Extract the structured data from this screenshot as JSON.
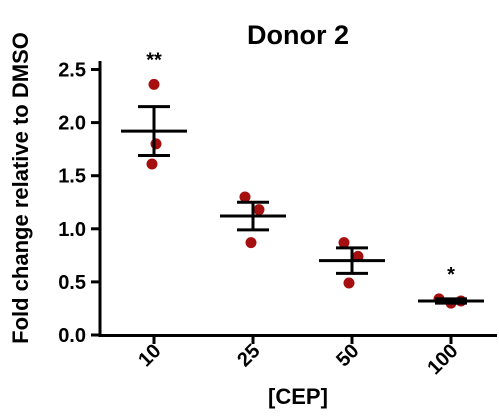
{
  "chart_data": {
    "type": "scatter",
    "title": "Donor 2",
    "xlabel": "[CEP]",
    "ylabel": "Fold change relative to DMSO",
    "categories": [
      "10",
      "25",
      "50",
      "100"
    ],
    "ylim": [
      0.0,
      2.6
    ],
    "yticks": [
      "0.0",
      "0.5",
      "1.0",
      "1.5",
      "2.0",
      "2.5"
    ],
    "grid": false,
    "point_color": "#a50f0f",
    "line_color": "#000000",
    "groups": [
      {
        "category": "10",
        "points": [
          2.36,
          1.8,
          1.61
        ],
        "mean": 1.92,
        "error": 0.23,
        "significance": "**"
      },
      {
        "category": "25",
        "points": [
          1.3,
          1.18,
          0.87
        ],
        "mean": 1.12,
        "error": 0.13,
        "significance": ""
      },
      {
        "category": "50",
        "points": [
          0.87,
          0.74,
          0.49
        ],
        "mean": 0.7,
        "error": 0.12,
        "significance": ""
      },
      {
        "category": "100",
        "points": [
          0.34,
          0.3,
          0.32
        ],
        "mean": 0.32,
        "error": 0.02,
        "significance": "*"
      }
    ]
  }
}
